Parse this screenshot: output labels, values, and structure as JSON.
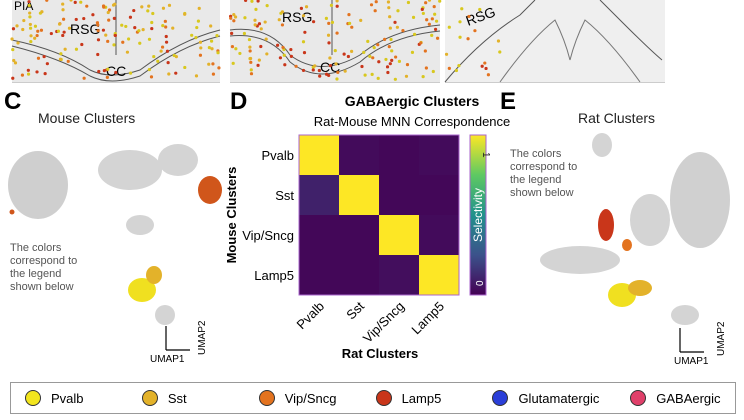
{
  "top_panels": {
    "labels_left": [
      "PIA",
      "RSG",
      "CC"
    ],
    "labels_mid": [
      "RSG",
      "CC"
    ],
    "labels_right": [
      "RSG"
    ]
  },
  "panel_c": {
    "letter": "C",
    "title": "Mouse Clusters",
    "note": "The colors correspond to the legend shown below",
    "axis_x": "UMAP1",
    "axis_y": "UMAP2"
  },
  "panel_d": {
    "letter": "D"
  },
  "panel_e": {
    "letter": "E",
    "title": "Rat Clusters",
    "note": "The colors correspond to the legend shown below",
    "axis_x": "UMAP1",
    "axis_y": "UMAP2"
  },
  "chart_data": {
    "type": "heatmap",
    "title": "GABAergic Clusters",
    "subtitle": "Rat-Mouse MNN Correspondence",
    "xlabel": "Rat Clusters",
    "ylabel": "Mouse Clusters",
    "x_categories": [
      "Pvalb",
      "Sst",
      "Vip/Sncg",
      "Lamp5"
    ],
    "y_categories": [
      "Pvalb",
      "Sst",
      "Vip/Sncg",
      "Lamp5"
    ],
    "values": [
      [
        1,
        0.03,
        0.02,
        0.03
      ],
      [
        0.1,
        1,
        0.02,
        0.02
      ],
      [
        0.02,
        0.02,
        1,
        0.03
      ],
      [
        0.02,
        0.02,
        0.04,
        1
      ]
    ],
    "colorbar": {
      "label": "Selectivity",
      "min": 0,
      "max": 1,
      "min_label": "0",
      "max_label": "1",
      "colormap": "viridis"
    }
  },
  "legend": [
    {
      "label": "Pvalb",
      "color": "#f2e51e"
    },
    {
      "label": "Sst",
      "color": "#e3b22a"
    },
    {
      "label": "Vip/Sncg",
      "color": "#e3731f"
    },
    {
      "label": "Lamp5",
      "color": "#c9361a"
    },
    {
      "label": "Glutamatergic",
      "color": "#2b3fd8"
    },
    {
      "label": "GABAergic",
      "color": "#e0406a"
    }
  ]
}
